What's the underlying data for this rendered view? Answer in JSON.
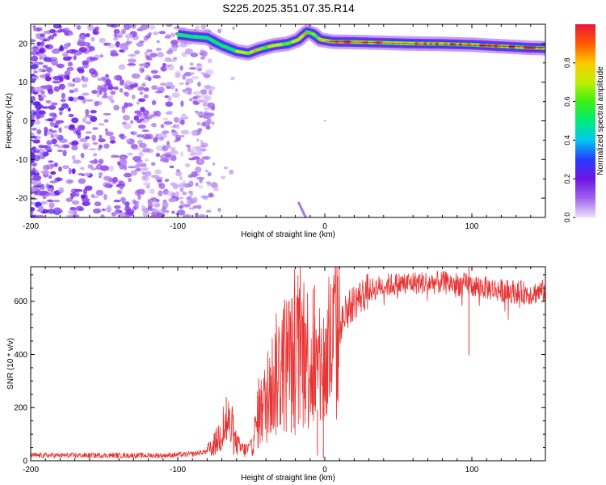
{
  "page_title": "S225.2025.351.07.35.R14",
  "colors": {
    "snr_line": "#e83333",
    "axis": "#000000",
    "background": "#ffffff"
  },
  "chart_data": [
    {
      "type": "heatmap",
      "title": "S225.2025.351.07.35.R14",
      "xlabel": "Height of straight line (km)",
      "ylabel": "Frequency (Hz)",
      "xlim": [
        -200,
        150
      ],
      "ylim": [
        -25,
        25
      ],
      "xticks": [
        -200,
        -100,
        0,
        100
      ],
      "xtick_labels": [
        "-200",
        "-100",
        "0",
        "100"
      ],
      "yticks": [
        -20,
        -10,
        0,
        10,
        20
      ],
      "ytick_labels": [
        "-20",
        "-10",
        "0",
        "10",
        "20"
      ],
      "colorbar": {
        "label": "Normalized spectral amplitude",
        "range": [
          0.0,
          1.0
        ],
        "ticks": [
          0.0,
          0.2,
          0.4,
          0.6,
          0.8
        ],
        "tick_labels": [
          "0.0",
          "0.2",
          "0.4",
          "0.6",
          "0.8"
        ]
      },
      "ridge": {
        "description_points_km_hz": [
          [
            -100,
            22.3
          ],
          [
            -90,
            21.8
          ],
          [
            -80,
            21.5
          ],
          [
            -70,
            19.5
          ],
          [
            -60,
            18.0
          ],
          [
            -52,
            17.5
          ],
          [
            -45,
            18.5
          ],
          [
            -35,
            19.5
          ],
          [
            -25,
            20.0
          ],
          [
            -18,
            21.0
          ],
          [
            -12,
            23.0
          ],
          [
            -8,
            22.5
          ],
          [
            -3,
            21.0
          ],
          [
            5,
            20.5
          ],
          [
            20,
            20.4
          ],
          [
            40,
            20.2
          ],
          [
            60,
            20.0
          ],
          [
            80,
            19.9
          ],
          [
            100,
            19.7
          ],
          [
            120,
            19.3
          ],
          [
            140,
            18.9
          ],
          [
            150,
            18.8
          ]
        ],
        "peak_amplitude": 1.0
      },
      "noise_region_km": [
        -200,
        -75
      ]
    },
    {
      "type": "line",
      "title": "",
      "xlabel": "Height of straight line (km)",
      "ylabel": "SNR (10 * v/v)",
      "xlim": [
        -200,
        150
      ],
      "ylim": [
        0,
        730
      ],
      "xticks": [
        -200,
        -100,
        0,
        100
      ],
      "xtick_labels": [
        "-200",
        "-100",
        "0",
        "100"
      ],
      "yticks": [
        0,
        200,
        400,
        600
      ],
      "ytick_labels": [
        "0",
        "200",
        "400",
        "600"
      ],
      "series": [
        {
          "name": "SNR",
          "envelope_km_snr": [
            [
              -200,
              20
            ],
            [
              -110,
              20
            ],
            [
              -90,
              25
            ],
            [
              -80,
              35
            ],
            [
              -75,
              60
            ],
            [
              -70,
              110
            ],
            [
              -66,
              150
            ],
            [
              -62,
              80
            ],
            [
              -58,
              50
            ],
            [
              -55,
              40
            ],
            [
              -50,
              45
            ],
            [
              -45,
              170
            ],
            [
              -40,
              220
            ],
            [
              -35,
              300
            ],
            [
              -30,
              350
            ],
            [
              -25,
              380
            ],
            [
              -20,
              360
            ],
            [
              -15,
              420
            ],
            [
              -10,
              380
            ],
            [
              -5,
              320
            ],
            [
              0,
              350
            ],
            [
              5,
              430
            ],
            [
              10,
              500
            ],
            [
              15,
              560
            ],
            [
              20,
              600
            ],
            [
              30,
              640
            ],
            [
              40,
              660
            ],
            [
              60,
              670
            ],
            [
              80,
              670
            ],
            [
              100,
              660
            ],
            [
              120,
              640
            ],
            [
              140,
              630
            ],
            [
              150,
              640
            ]
          ],
          "spikes_km_snr": [
            [
              -67,
              240
            ],
            [
              -45,
              310
            ],
            [
              -22,
              520
            ],
            [
              -14,
              520
            ],
            [
              -7,
              660
            ],
            [
              -5,
              20
            ],
            [
              -1,
              10
            ],
            [
              98,
              735
            ]
          ]
        }
      ]
    }
  ]
}
